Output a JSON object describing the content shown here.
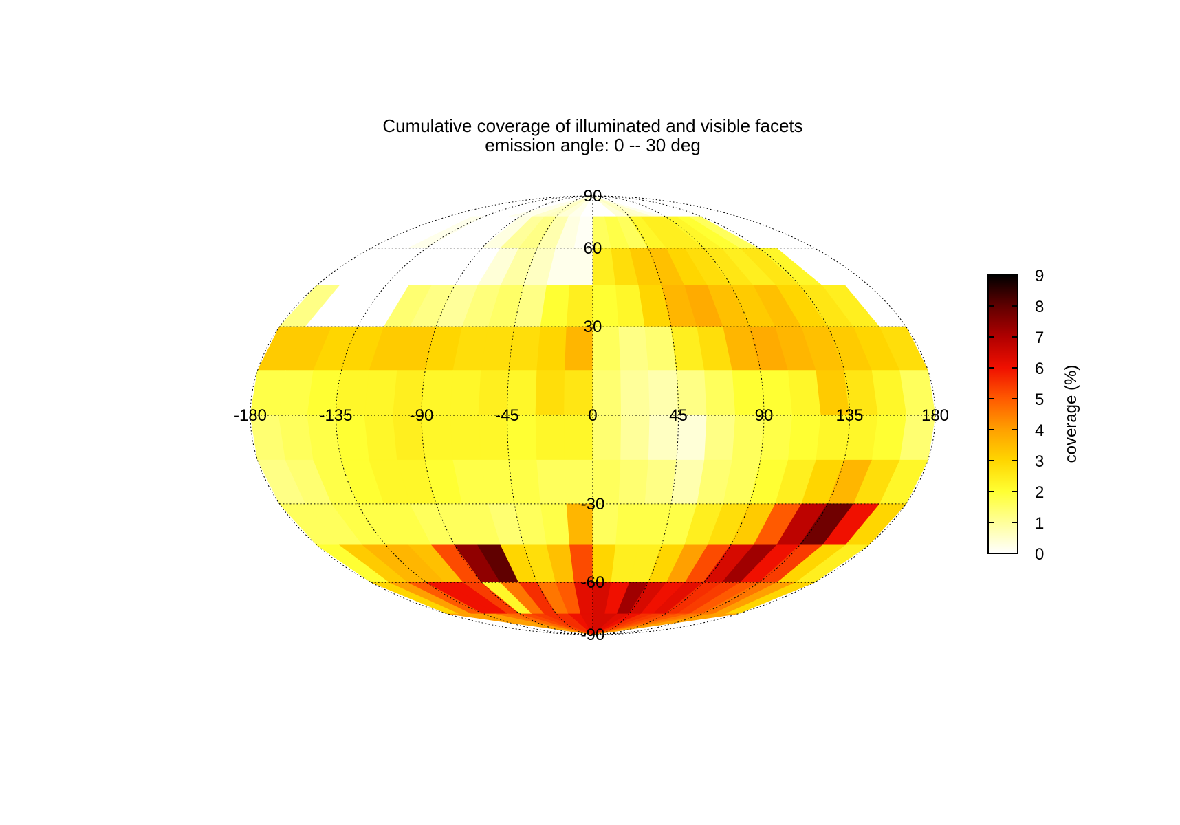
{
  "chart_data": {
    "type": "heatmap",
    "projection": "mollweide",
    "title": "Cumulative coverage of illuminated and visible facets",
    "subtitle": "emission angle:  0 -- 30 deg",
    "x_ticks": [
      "-180",
      "-135",
      "-90",
      "-45",
      "0",
      "45",
      "90",
      "135",
      "180"
    ],
    "y_ticks": [
      "90",
      "60",
      "30",
      "-30",
      "-60",
      "-90"
    ],
    "colorbar": {
      "label": "coverage (%)",
      "range": [
        0,
        9
      ],
      "ticks": [
        "0",
        "1",
        "2",
        "3",
        "4",
        "5",
        "6",
        "7",
        "8",
        "9"
      ],
      "colors": [
        "#ffffff",
        "#ffff9a",
        "#ffff33",
        "#ffd600",
        "#ffa000",
        "#ff5a00",
        "#f01000",
        "#b00000",
        "#600000",
        "#000000"
      ]
    },
    "lon_edges": [
      -180,
      -165,
      -150,
      -135,
      -120,
      -105,
      -90,
      -75,
      -60,
      -45,
      -30,
      -15,
      0,
      15,
      30,
      45,
      60,
      75,
      90,
      105,
      120,
      135,
      150,
      165,
      180
    ],
    "lat_edges": [
      90,
      75,
      60,
      45,
      30,
      15,
      0,
      -15,
      -30,
      -45,
      -60,
      -75,
      -90
    ],
    "grid_values": [
      [
        0,
        0,
        0,
        0,
        0,
        0.2,
        0.2,
        0.5,
        0.6,
        0.4,
        0.2,
        0,
        0,
        0,
        0.4,
        0.6,
        0.5,
        0.2,
        0,
        0,
        0,
        0,
        0,
        0
      ],
      [
        0,
        0,
        0.2,
        0,
        0,
        0,
        0.3,
        1.0,
        1.2,
        0.8,
        0.3,
        0.1,
        1.6,
        1.8,
        1.6,
        2.2,
        2.4,
        2.4,
        2.2,
        2.0,
        1.6,
        0,
        0,
        0
      ],
      [
        0,
        0,
        0,
        0,
        0,
        0,
        0,
        0.4,
        0.9,
        0.6,
        0.2,
        0.2,
        2.4,
        2.8,
        3.2,
        3.4,
        3.0,
        2.8,
        2.6,
        2.4,
        2.6,
        2.2,
        0,
        0
      ],
      [
        1.2,
        0,
        0,
        0,
        1.4,
        1.2,
        1.0,
        1.3,
        1.5,
        1.2,
        2.0,
        2.4,
        2.0,
        2.2,
        3.0,
        3.6,
        3.8,
        3.4,
        3.2,
        3.4,
        3.0,
        2.6,
        2.4,
        0
      ],
      [
        3.2,
        3.2,
        3.0,
        3.0,
        3.2,
        3.2,
        3.0,
        2.8,
        2.8,
        2.8,
        3.0,
        3.6,
        1.6,
        1.2,
        1.4,
        2.4,
        2.8,
        3.6,
        3.8,
        3.6,
        3.4,
        3.2,
        3.0,
        2.8
      ],
      [
        1.8,
        1.8,
        2.0,
        2.2,
        2.2,
        2.4,
        2.2,
        2.2,
        2.4,
        2.2,
        2.8,
        2.6,
        1.4,
        1.0,
        0.8,
        1.2,
        1.6,
        2.0,
        2.0,
        2.2,
        3.2,
        2.6,
        2.2,
        1.6
      ],
      [
        1.4,
        1.6,
        1.8,
        2.0,
        2.2,
        2.4,
        2.2,
        2.2,
        2.2,
        2.0,
        2.2,
        2.2,
        1.4,
        1.0,
        0.6,
        0.4,
        1.2,
        1.6,
        1.8,
        2.0,
        2.2,
        2.2,
        2.0,
        1.4
      ],
      [
        1.2,
        1.4,
        1.8,
        2.0,
        2.2,
        2.2,
        2.0,
        1.8,
        1.8,
        1.8,
        1.6,
        1.6,
        1.6,
        1.4,
        1.2,
        0.8,
        1.4,
        1.6,
        2.0,
        2.4,
        3.0,
        3.6,
        2.8,
        2.2
      ],
      [
        1.6,
        1.6,
        1.8,
        1.8,
        1.8,
        1.6,
        1.6,
        1.6,
        1.4,
        1.6,
        1.8,
        3.6,
        1.6,
        1.8,
        1.8,
        1.8,
        2.4,
        2.8,
        3.2,
        5.0,
        6.8,
        7.8,
        6.0,
        3.0
      ],
      [
        2.0,
        3.2,
        3.6,
        3.6,
        3.4,
        5.2,
        7.4,
        8.0,
        3.0,
        2.8,
        3.4,
        5.2,
        3.0,
        2.4,
        2.4,
        3.0,
        4.0,
        5.2,
        6.4,
        7.2,
        6.0,
        5.4,
        3.0,
        2.4
      ],
      [
        3.0,
        4.0,
        5.0,
        6.0,
        6.0,
        5.4,
        2.2,
        4.6,
        5.6,
        4.6,
        5.0,
        6.2,
        6.4,
        6.0,
        7.2,
        6.4,
        6.0,
        6.2,
        5.6,
        5.4,
        5.0,
        4.6,
        4.0,
        3.0
      ],
      [
        4.0,
        4.0,
        4.0,
        4.0,
        4.6,
        4.8,
        5.2,
        5.4,
        5.6,
        5.6,
        6.0,
        6.2,
        6.4,
        6.4,
        6.2,
        6.0,
        5.6,
        5.4,
        5.2,
        5.0,
        4.6,
        4.4,
        4.0,
        4.0
      ]
    ]
  }
}
